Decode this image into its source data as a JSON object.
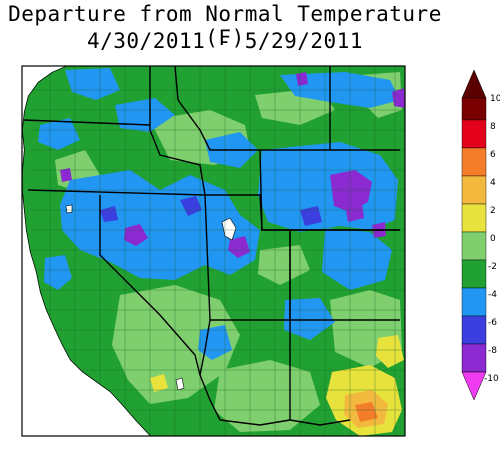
{
  "title": {
    "line1": "Departure from Normal Temperature (F)",
    "line2": "4/30/2011 - 5/29/2011"
  },
  "legend": {
    "unit": "F",
    "ticks": [
      "10",
      "8",
      "6",
      "4",
      "2",
      "0",
      "-2",
      "-4",
      "-6",
      "-8",
      "-10"
    ],
    "bins": [
      {
        "range": "8 to 10",
        "color": "#7a0000"
      },
      {
        "range": "6 to 8",
        "color": "#e3001b"
      },
      {
        "range": "4 to 6",
        "color": "#f47d2a"
      },
      {
        "range": "2 to 4",
        "color": "#f3b93f"
      },
      {
        "range": "0 to 2",
        "color": "#e8e23c"
      },
      {
        "range": "-2 to 0",
        "color": "#7fcf6e"
      },
      {
        "range": "-4 to -2",
        "color": "#21a132"
      },
      {
        "range": "-6 to -4",
        "color": "#2196f3"
      },
      {
        "range": "-8 to -6",
        "color": "#3b3fe0"
      },
      {
        "range": "-10 to -8",
        "color": "#8a2ad0"
      },
      {
        "range": "< -10",
        "color": "#f03cf0"
      }
    ]
  },
  "map": {
    "region": "Western United States",
    "ocean_color": "#ffffff"
  }
}
